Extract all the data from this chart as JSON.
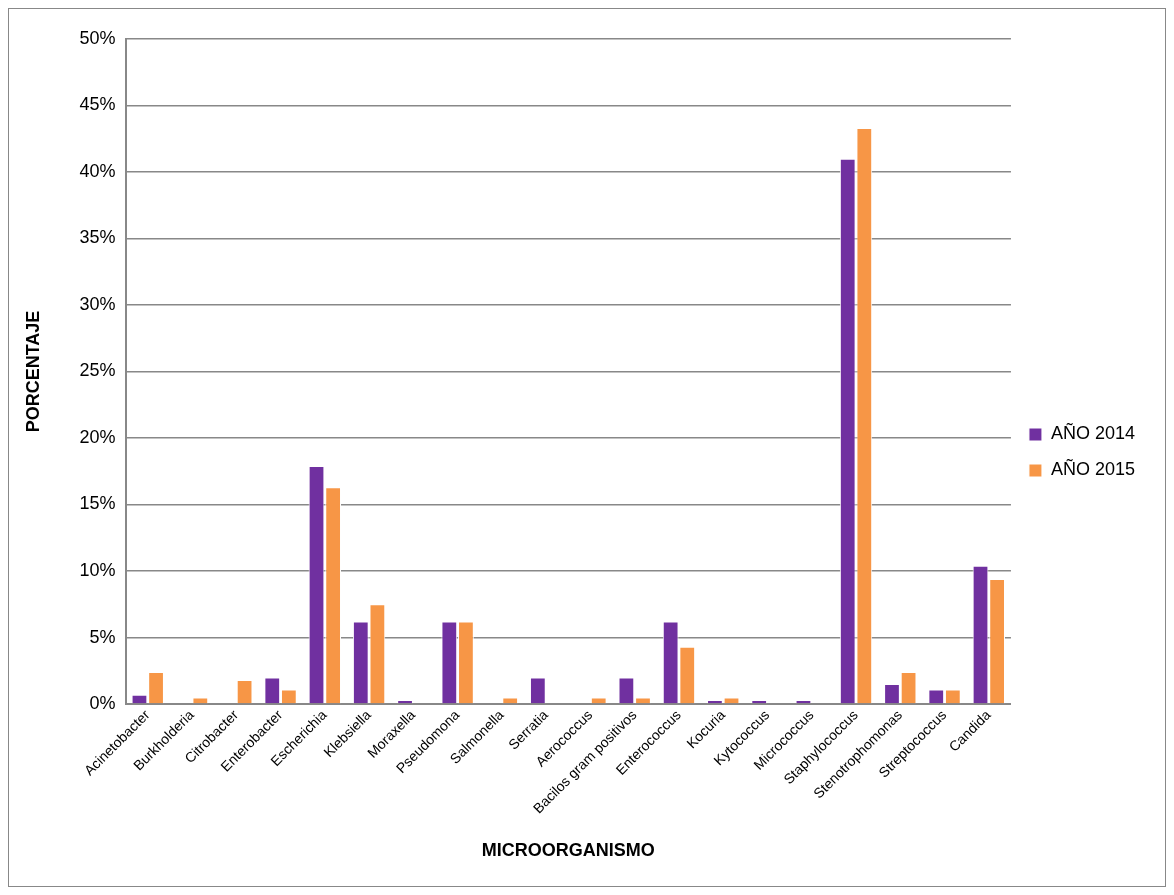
{
  "chart_data": {
    "type": "bar",
    "xlabel": "MICROORGANISMO",
    "ylabel": "PORCENTAJE",
    "categories": [
      "Acinetobacter",
      "Burkholderia",
      "Citrobacter",
      "Enterobacter",
      "Escherichia",
      "Klebsiella",
      "Moraxella",
      "Pseudomona",
      "Salmonella",
      "Serratia",
      "Aerococcus",
      "Bacilos gram positivos",
      "Enterococcus",
      "Kocuria",
      "Kytococcus",
      "Micrococcus",
      "Staphylococcus",
      "Stenotrophomonas",
      "Streptococcus",
      "Candida"
    ],
    "series": [
      {
        "name": "AÑO 2014",
        "color": "#7030a0",
        "values": [
          0.7,
          0,
          0,
          2.0,
          17.9,
          6.2,
          0.3,
          6.2,
          0,
          2.0,
          0,
          2.0,
          6.2,
          0.3,
          0.3,
          0.3,
          41.0,
          1.5,
          1.1,
          10.4
        ]
      },
      {
        "name": "AÑO 2015",
        "color": "#f79646",
        "values": [
          2.4,
          0.5,
          1.8,
          1.1,
          16.3,
          7.5,
          0,
          6.2,
          0.5,
          0,
          0.5,
          0.5,
          4.3,
          0.5,
          0,
          0,
          43.3,
          2.4,
          1.1,
          9.4
        ]
      }
    ],
    "ylim": [
      0,
      50
    ],
    "yticks": [
      {
        "value": 0,
        "label": "0%"
      },
      {
        "value": 5,
        "label": "5%"
      },
      {
        "value": 10,
        "label": "10%"
      },
      {
        "value": 15,
        "label": "15%"
      },
      {
        "value": 20,
        "label": "20%"
      },
      {
        "value": 25,
        "label": "25%"
      },
      {
        "value": 30,
        "label": "30%"
      },
      {
        "value": 35,
        "label": "35%"
      },
      {
        "value": 40,
        "label": "40%"
      },
      {
        "value": 45,
        "label": "45%"
      },
      {
        "value": 50,
        "label": "50%"
      }
    ],
    "grid": "y",
    "legend": "right"
  }
}
